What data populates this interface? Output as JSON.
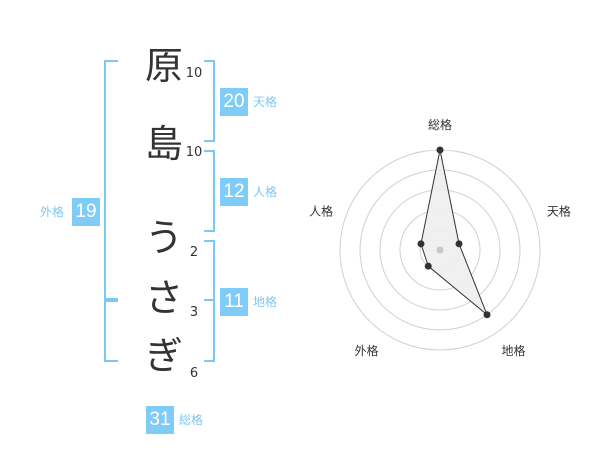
{
  "name": {
    "characters": [
      {
        "char": "原",
        "strokes": "10"
      },
      {
        "char": "島",
        "strokes": "10"
      },
      {
        "char": "う",
        "strokes": "2"
      },
      {
        "char": "さ",
        "strokes": "3"
      },
      {
        "char": "ぎ",
        "strokes": "6"
      }
    ]
  },
  "kaku": {
    "tenkaku": {
      "label": "天格",
      "value": "20"
    },
    "jinkaku": {
      "label": "人格",
      "value": "12"
    },
    "chikaku": {
      "label": "地格",
      "value": "11"
    },
    "gaikaku": {
      "label": "外格",
      "value": "19"
    },
    "soukaku": {
      "label": "総格",
      "value": "31"
    }
  },
  "colors": {
    "accent": "#80ccf8",
    "bracket": "#7cc8f5",
    "radar_fill": "#eeeeee",
    "radar_line": "#333333"
  },
  "chart_data": {
    "type": "radar",
    "categories": [
      "総格",
      "天格",
      "地格",
      "外格",
      "人格"
    ],
    "values": [
      5,
      1,
      4,
      1,
      1
    ],
    "range": [
      0,
      5
    ],
    "rings": 5
  }
}
